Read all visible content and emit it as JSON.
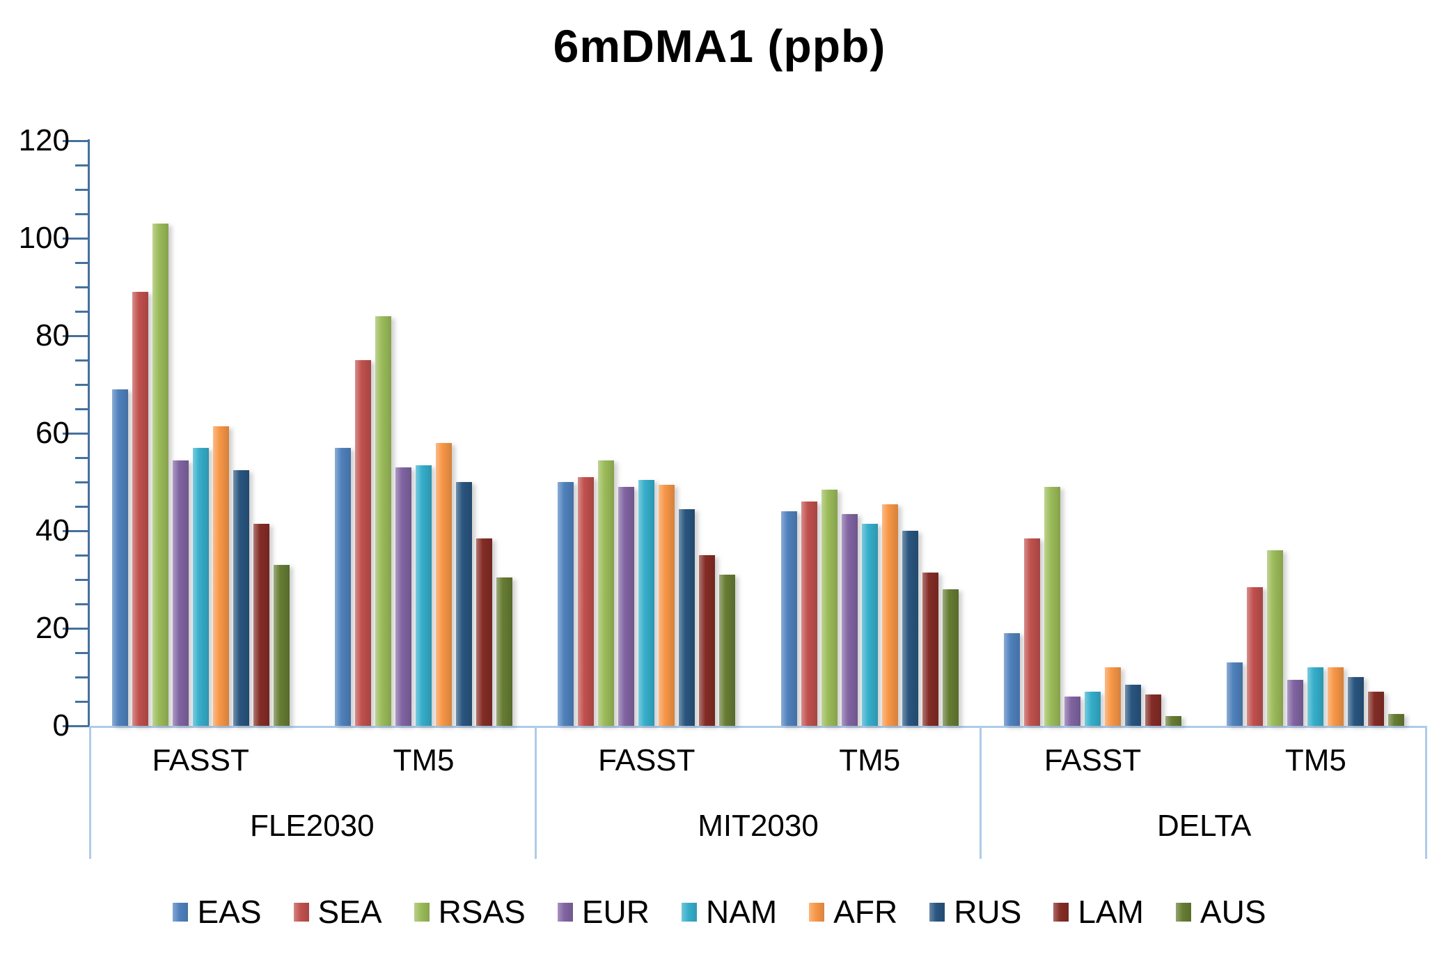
{
  "title": "6mDMA1 (ppb)",
  "colors": {
    "axis_line": "#44719F",
    "baseline_and_separators": "#AECBEA",
    "text": "#000000",
    "background": "#FFFFFF"
  },
  "chart_data": {
    "type": "bar",
    "title": "6mDMA1 (ppb)",
    "ylabel": "",
    "ylim": [
      0,
      120
    ],
    "ytick_major_step": 20,
    "ytick_minor_step": 5,
    "ytick_labels": [
      "0",
      "20",
      "40",
      "60",
      "80",
      "100",
      "120"
    ],
    "grid": "off",
    "legend_position": "bottom",
    "scenarios": [
      {
        "label": "FLE2030",
        "models": [
          "FASST",
          "TM5"
        ]
      },
      {
        "label": "MIT2030",
        "models": [
          "FASST",
          "TM5"
        ]
      },
      {
        "label": "DELTA",
        "models": [
          "FASST",
          "TM5"
        ]
      }
    ],
    "group_order": [
      "FLE2030-FASST",
      "FLE2030-TM5",
      "MIT2030-FASST",
      "MIT2030-TM5",
      "DELTA-FASST",
      "DELTA-TM5"
    ],
    "series": [
      {
        "name": "EAS",
        "color": "#4F81BD",
        "values": [
          69,
          57,
          50,
          44,
          19,
          13
        ]
      },
      {
        "name": "SEA",
        "color": "#C0504D",
        "values": [
          89,
          75,
          51,
          46,
          38.5,
          28.5
        ]
      },
      {
        "name": "RSAS",
        "color": "#9BBB59",
        "values": [
          103,
          84,
          54.5,
          48.5,
          49,
          36
        ]
      },
      {
        "name": "EUR",
        "color": "#8064A2",
        "values": [
          54.5,
          53,
          49,
          43.5,
          6,
          9.5
        ]
      },
      {
        "name": "NAM",
        "color": "#35AECB",
        "values": [
          57,
          53.5,
          50.5,
          41.5,
          7,
          12
        ]
      },
      {
        "name": "AFR",
        "color": "#F79646",
        "values": [
          61.5,
          58,
          49.5,
          45.5,
          12,
          12
        ]
      },
      {
        "name": "RUS",
        "color": "#29557F",
        "values": [
          52.5,
          50,
          44.5,
          40,
          8.5,
          10
        ]
      },
      {
        "name": "LAM",
        "color": "#842C26",
        "values": [
          41.5,
          38.5,
          35,
          31.5,
          6.5,
          7
        ]
      },
      {
        "name": "AUS",
        "color": "#667C33",
        "values": [
          33,
          30.5,
          31,
          28,
          2,
          2.5
        ]
      }
    ]
  }
}
